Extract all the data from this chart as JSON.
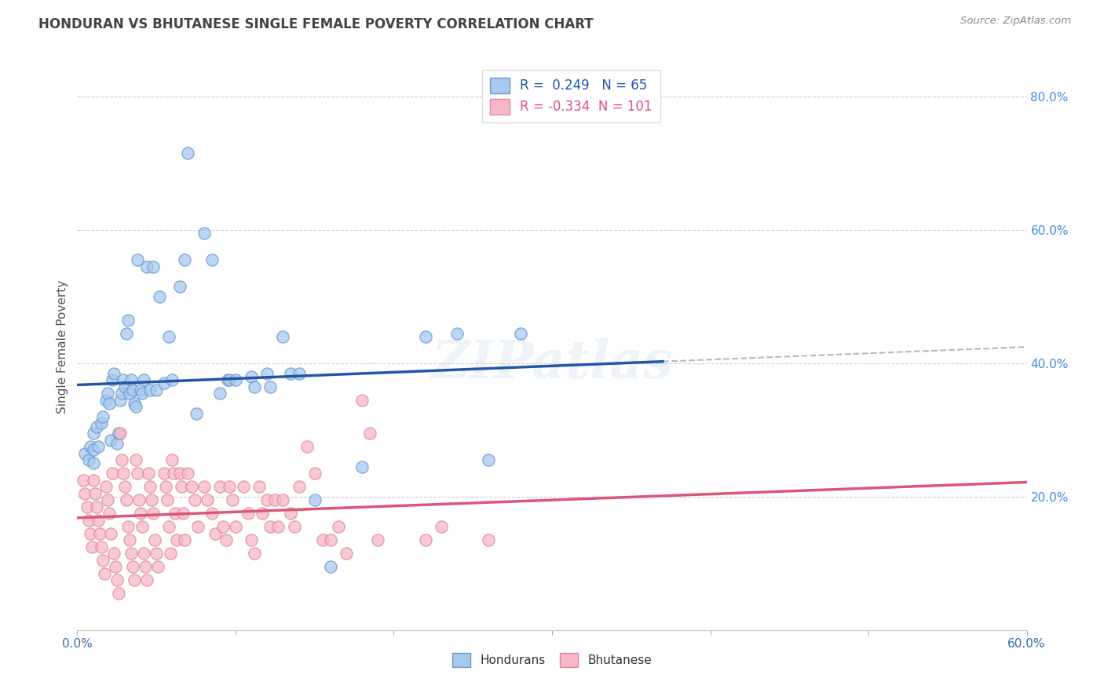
{
  "title": "HONDURAN VS BHUTANESE SINGLE FEMALE POVERTY CORRELATION CHART",
  "source": "Source: ZipAtlas.com",
  "ylabel": "Single Female Poverty",
  "xlim": [
    0.0,
    0.6
  ],
  "ylim": [
    0.0,
    0.85
  ],
  "x_tick_positions": [
    0.0,
    0.6
  ],
  "x_tick_labels": [
    "0.0%",
    "60.0%"
  ],
  "y_ticks_right": [
    0.2,
    0.4,
    0.6,
    0.8
  ],
  "y_tick_labels_right": [
    "20.0%",
    "40.0%",
    "60.0%",
    "80.0%"
  ],
  "honduran_color": "#A8C8F0",
  "honduran_edge_color": "#6699CC",
  "bhutanese_color": "#F8B8C8",
  "bhutanese_edge_color": "#DD8899",
  "honduran_line_color": "#2255AA",
  "bhutanese_line_color": "#DD5577",
  "dashed_line_color": "#AABBCC",
  "legend_honduran_label": "Hondurans",
  "legend_bhutanese_label": "Bhutanese",
  "r_honduran": 0.249,
  "n_honduran": 65,
  "r_bhutanese": -0.334,
  "n_bhutanese": 101,
  "background_color": "#FFFFFF",
  "grid_color": "#CCCCCC",
  "honduran_line_x_end": 0.37,
  "honduran_scatter": [
    [
      0.005,
      0.265
    ],
    [
      0.007,
      0.255
    ],
    [
      0.008,
      0.275
    ],
    [
      0.01,
      0.27
    ],
    [
      0.01,
      0.25
    ],
    [
      0.01,
      0.295
    ],
    [
      0.012,
      0.305
    ],
    [
      0.013,
      0.275
    ],
    [
      0.015,
      0.31
    ],
    [
      0.016,
      0.32
    ],
    [
      0.018,
      0.345
    ],
    [
      0.019,
      0.355
    ],
    [
      0.02,
      0.34
    ],
    [
      0.021,
      0.285
    ],
    [
      0.022,
      0.375
    ],
    [
      0.023,
      0.385
    ],
    [
      0.025,
      0.28
    ],
    [
      0.026,
      0.295
    ],
    [
      0.027,
      0.345
    ],
    [
      0.028,
      0.355
    ],
    [
      0.029,
      0.375
    ],
    [
      0.03,
      0.365
    ],
    [
      0.031,
      0.445
    ],
    [
      0.032,
      0.465
    ],
    [
      0.033,
      0.355
    ],
    [
      0.034,
      0.375
    ],
    [
      0.035,
      0.36
    ],
    [
      0.036,
      0.34
    ],
    [
      0.037,
      0.335
    ],
    [
      0.038,
      0.555
    ],
    [
      0.04,
      0.36
    ],
    [
      0.041,
      0.355
    ],
    [
      0.042,
      0.375
    ],
    [
      0.044,
      0.545
    ],
    [
      0.046,
      0.36
    ],
    [
      0.048,
      0.545
    ],
    [
      0.05,
      0.36
    ],
    [
      0.052,
      0.5
    ],
    [
      0.055,
      0.37
    ],
    [
      0.058,
      0.44
    ],
    [
      0.06,
      0.375
    ],
    [
      0.065,
      0.515
    ],
    [
      0.068,
      0.555
    ],
    [
      0.07,
      0.715
    ],
    [
      0.075,
      0.325
    ],
    [
      0.08,
      0.595
    ],
    [
      0.085,
      0.555
    ],
    [
      0.09,
      0.355
    ],
    [
      0.095,
      0.375
    ],
    [
      0.096,
      0.375
    ],
    [
      0.1,
      0.375
    ],
    [
      0.11,
      0.38
    ],
    [
      0.112,
      0.365
    ],
    [
      0.12,
      0.385
    ],
    [
      0.122,
      0.365
    ],
    [
      0.13,
      0.44
    ],
    [
      0.135,
      0.385
    ],
    [
      0.14,
      0.385
    ],
    [
      0.15,
      0.195
    ],
    [
      0.16,
      0.095
    ],
    [
      0.18,
      0.245
    ],
    [
      0.22,
      0.44
    ],
    [
      0.24,
      0.445
    ],
    [
      0.26,
      0.255
    ],
    [
      0.28,
      0.445
    ]
  ],
  "bhutanese_scatter": [
    [
      0.004,
      0.225
    ],
    [
      0.005,
      0.205
    ],
    [
      0.006,
      0.185
    ],
    [
      0.007,
      0.165
    ],
    [
      0.008,
      0.145
    ],
    [
      0.009,
      0.125
    ],
    [
      0.01,
      0.225
    ],
    [
      0.011,
      0.205
    ],
    [
      0.012,
      0.185
    ],
    [
      0.013,
      0.165
    ],
    [
      0.014,
      0.145
    ],
    [
      0.015,
      0.125
    ],
    [
      0.016,
      0.105
    ],
    [
      0.017,
      0.085
    ],
    [
      0.018,
      0.215
    ],
    [
      0.019,
      0.195
    ],
    [
      0.02,
      0.175
    ],
    [
      0.021,
      0.145
    ],
    [
      0.022,
      0.235
    ],
    [
      0.023,
      0.115
    ],
    [
      0.024,
      0.095
    ],
    [
      0.025,
      0.075
    ],
    [
      0.026,
      0.055
    ],
    [
      0.027,
      0.295
    ],
    [
      0.028,
      0.255
    ],
    [
      0.029,
      0.235
    ],
    [
      0.03,
      0.215
    ],
    [
      0.031,
      0.195
    ],
    [
      0.032,
      0.155
    ],
    [
      0.033,
      0.135
    ],
    [
      0.034,
      0.115
    ],
    [
      0.035,
      0.095
    ],
    [
      0.036,
      0.075
    ],
    [
      0.037,
      0.255
    ],
    [
      0.038,
      0.235
    ],
    [
      0.039,
      0.195
    ],
    [
      0.04,
      0.175
    ],
    [
      0.041,
      0.155
    ],
    [
      0.042,
      0.115
    ],
    [
      0.043,
      0.095
    ],
    [
      0.044,
      0.075
    ],
    [
      0.045,
      0.235
    ],
    [
      0.046,
      0.215
    ],
    [
      0.047,
      0.195
    ],
    [
      0.048,
      0.175
    ],
    [
      0.049,
      0.135
    ],
    [
      0.05,
      0.115
    ],
    [
      0.051,
      0.095
    ],
    [
      0.055,
      0.235
    ],
    [
      0.056,
      0.215
    ],
    [
      0.057,
      0.195
    ],
    [
      0.058,
      0.155
    ],
    [
      0.059,
      0.115
    ],
    [
      0.06,
      0.255
    ],
    [
      0.061,
      0.235
    ],
    [
      0.062,
      0.175
    ],
    [
      0.063,
      0.135
    ],
    [
      0.065,
      0.235
    ],
    [
      0.066,
      0.215
    ],
    [
      0.067,
      0.175
    ],
    [
      0.068,
      0.135
    ],
    [
      0.07,
      0.235
    ],
    [
      0.072,
      0.215
    ],
    [
      0.074,
      0.195
    ],
    [
      0.076,
      0.155
    ],
    [
      0.08,
      0.215
    ],
    [
      0.082,
      0.195
    ],
    [
      0.085,
      0.175
    ],
    [
      0.087,
      0.145
    ],
    [
      0.09,
      0.215
    ],
    [
      0.092,
      0.155
    ],
    [
      0.094,
      0.135
    ],
    [
      0.096,
      0.215
    ],
    [
      0.098,
      0.195
    ],
    [
      0.1,
      0.155
    ],
    [
      0.105,
      0.215
    ],
    [
      0.108,
      0.175
    ],
    [
      0.11,
      0.135
    ],
    [
      0.112,
      0.115
    ],
    [
      0.115,
      0.215
    ],
    [
      0.117,
      0.175
    ],
    [
      0.12,
      0.195
    ],
    [
      0.122,
      0.155
    ],
    [
      0.125,
      0.195
    ],
    [
      0.127,
      0.155
    ],
    [
      0.13,
      0.195
    ],
    [
      0.135,
      0.175
    ],
    [
      0.137,
      0.155
    ],
    [
      0.14,
      0.215
    ],
    [
      0.145,
      0.275
    ],
    [
      0.15,
      0.235
    ],
    [
      0.155,
      0.135
    ],
    [
      0.16,
      0.135
    ],
    [
      0.165,
      0.155
    ],
    [
      0.17,
      0.115
    ],
    [
      0.18,
      0.345
    ],
    [
      0.185,
      0.295
    ],
    [
      0.19,
      0.135
    ],
    [
      0.22,
      0.135
    ],
    [
      0.23,
      0.155
    ],
    [
      0.26,
      0.135
    ]
  ]
}
